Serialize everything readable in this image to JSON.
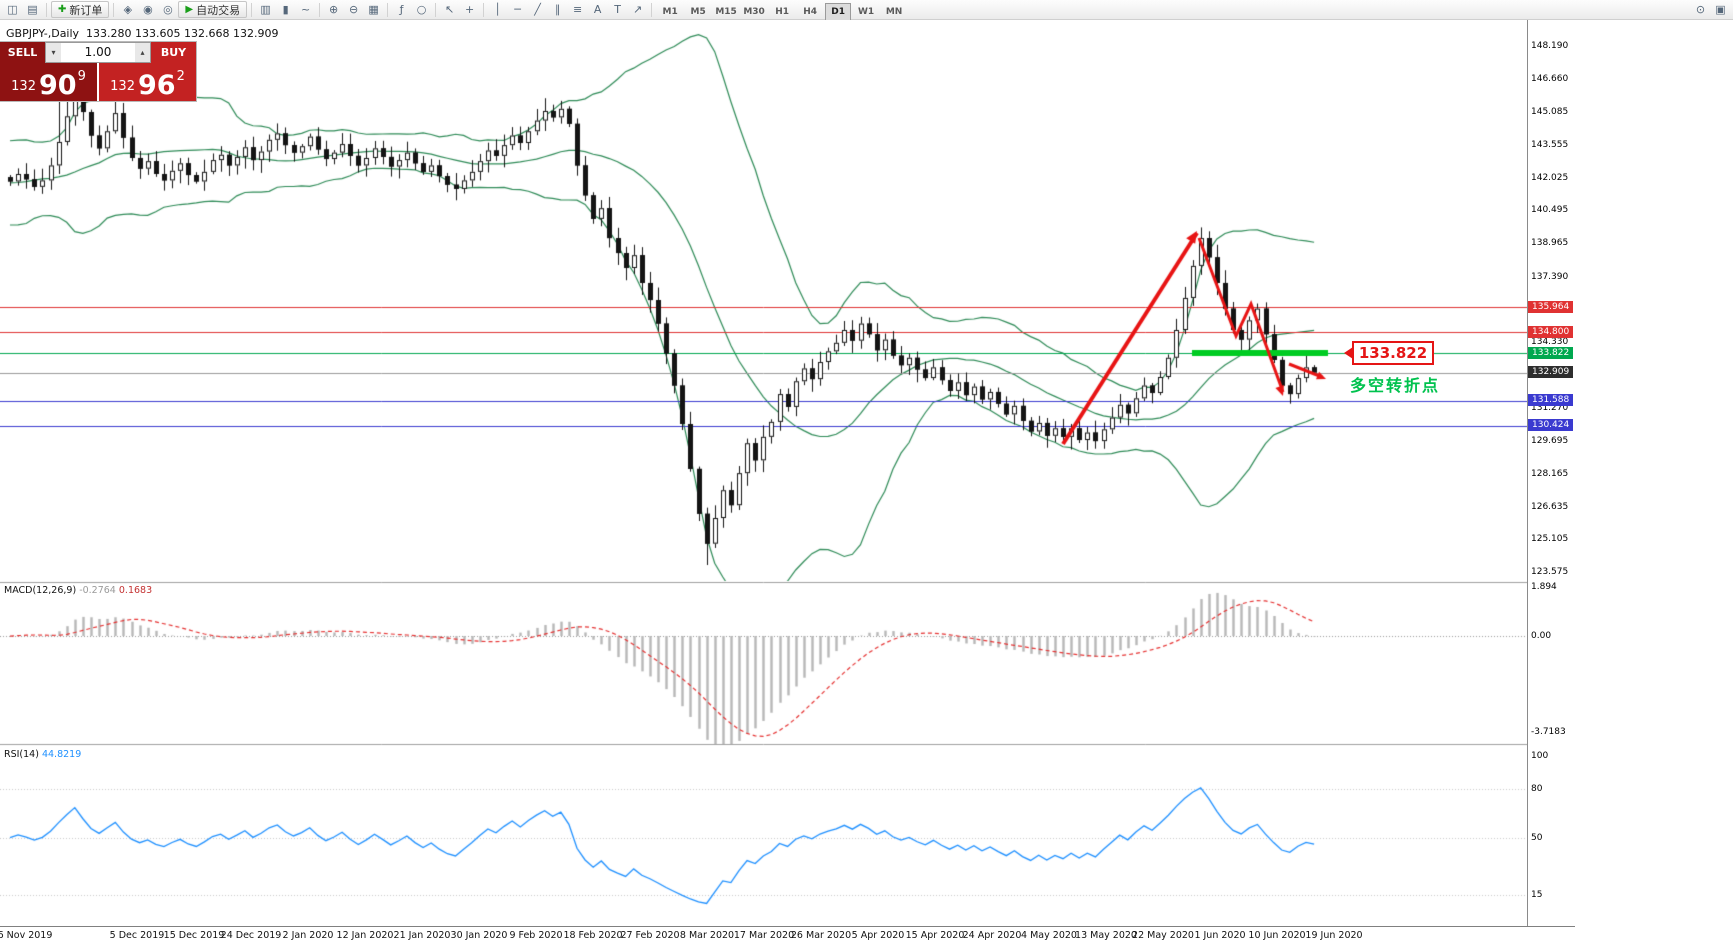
{
  "toolbar": {
    "new_order_label": "新订单",
    "autotrade_label": "自动交易",
    "timeframes": [
      "M1",
      "M5",
      "M15",
      "M30",
      "H1",
      "H4",
      "D1",
      "W1",
      "MN"
    ],
    "active_timeframe": "D1"
  },
  "icons": {
    "new_chart": "◫",
    "profiles": "▤",
    "new_order_plus": "✚",
    "expert_advisors": "◈",
    "scripts": "◉",
    "alerts": "◎",
    "autotrade_play": "▶",
    "bar_chart": "▥",
    "candle_chart": "▮",
    "line_chart": "~",
    "zoom_in": "⊕",
    "zoom_out": "⊖",
    "tile_windows": "▦",
    "indicators": "ƒ",
    "periods": "○",
    "cursor": "↖",
    "crosshair": "+",
    "vline": "│",
    "hline": "─",
    "trendline": "╱",
    "channel": "∥",
    "fibonacci": "≡",
    "text": "A",
    "text_label": "T",
    "arrow_tool": "↗",
    "chart_search": "⊙",
    "window_list": "▣",
    "spin_down": "▾",
    "spin_up": "▴"
  },
  "trade_panel": {
    "sell_label": "SELL",
    "buy_label": "BUY",
    "volume": "1.00",
    "sell_price_main": "132",
    "sell_price_big": "90",
    "sell_price_sup": "9",
    "buy_price_main": "132",
    "buy_price_big": "96",
    "buy_price_sup": "2"
  },
  "chart": {
    "header": "GBPJPY-,Daily  133.280 133.605 132.668 132.909",
    "current_price": "132.909",
    "annotation_box": "133.822",
    "annotation_text": "多空转折点",
    "price_ticks": [
      "148.190",
      "146.660",
      "145.085",
      "143.555",
      "142.025",
      "140.495",
      "138.965",
      "137.390",
      "134.330",
      "131.270",
      "129.695",
      "128.165",
      "126.635",
      "125.105",
      "123.575"
    ]
  },
  "macd": {
    "name": "MACD(12,26,9)",
    "v1": "-0.2764",
    "v2": "0.1683",
    "ticks": [
      "1.894",
      "0.00",
      "-3.7183"
    ]
  },
  "rsi": {
    "name": "RSI(14)",
    "value": "44.8219",
    "ticks": [
      "100",
      "80",
      "50",
      "15"
    ]
  },
  "chart_data": {
    "type": "candlestick",
    "symbol": "GBPJPY-",
    "period": "Daily",
    "ohlc_display": {
      "open": "133.280",
      "high": "133.605",
      "low": "132.668",
      "close": "132.909"
    },
    "y_range": [
      123.575,
      148.19
    ],
    "macd_range": [
      -3.7183,
      1.894
    ],
    "rsi_levels": [
      80,
      50,
      15
    ],
    "last_price": 132.909,
    "dates": [
      "6 Nov 2019",
      "5 Dec 2019",
      "15 Dec 2019",
      "24 Dec 2019",
      "2 Jan 2020",
      "12 Jan 2020",
      "21 Jan 2020",
      "30 Jan 2020",
      "9 Feb 2020",
      "18 Feb 2020",
      "27 Feb 2020",
      "8 Mar 2020",
      "17 Mar 2020",
      "26 Mar 2020",
      "5 Apr 2020",
      "15 Apr 2020",
      "24 Apr 2020",
      "4 May 2020",
      "13 May 2020",
      "22 May 2020",
      "1 Jun 2020",
      "10 Jun 2020",
      "19 Jun 2020"
    ],
    "closes": [
      141.85,
      142.2,
      141.95,
      141.6,
      141.9,
      142.6,
      143.7,
      144.9,
      146.2,
      145.1,
      144.0,
      143.4,
      144.2,
      145.05,
      143.9,
      142.95,
      142.45,
      142.8,
      142.2,
      141.9,
      142.35,
      142.7,
      142.15,
      141.85,
      142.3,
      142.85,
      143.1,
      142.6,
      143.0,
      143.45,
      142.85,
      143.25,
      143.8,
      144.1,
      143.55,
      143.2,
      143.5,
      143.95,
      143.35,
      142.9,
      143.2,
      143.6,
      143.05,
      142.6,
      142.95,
      143.4,
      143.0,
      142.55,
      142.85,
      143.2,
      142.7,
      142.3,
      142.6,
      142.1,
      141.7,
      141.5,
      141.9,
      142.3,
      142.8,
      143.3,
      143.05,
      143.55,
      144.0,
      143.65,
      144.2,
      144.7,
      145.15,
      144.85,
      145.25,
      144.55,
      142.6,
      141.2,
      140.1,
      140.6,
      139.2,
      138.5,
      137.8,
      138.4,
      137.1,
      136.3,
      135.2,
      133.8,
      132.3,
      130.5,
      128.4,
      126.3,
      124.9,
      126.1,
      127.4,
      126.7,
      128.2,
      129.6,
      128.8,
      129.9,
      130.6,
      131.9,
      131.3,
      132.5,
      133.1,
      132.6,
      133.4,
      133.9,
      134.3,
      134.9,
      134.4,
      135.2,
      134.7,
      133.95,
      134.45,
      133.7,
      133.25,
      133.6,
      133.05,
      132.65,
      133.15,
      132.55,
      132.05,
      132.45,
      131.85,
      132.25,
      131.65,
      132.0,
      131.45,
      130.95,
      131.35,
      130.65,
      130.15,
      130.55,
      129.95,
      130.3,
      129.9,
      130.3,
      129.75,
      130.1,
      129.7,
      130.25,
      130.8,
      131.4,
      131.0,
      131.7,
      132.3,
      131.95,
      132.7,
      133.6,
      134.9,
      136.4,
      137.9,
      139.2,
      138.3,
      137.1,
      135.9,
      134.9,
      134.45,
      135.35,
      135.9,
      134.7,
      133.5,
      132.3,
      131.9,
      132.65,
      133.15,
      132.91
    ],
    "wick_overrides": {
      "6": {
        "high": 147.0
      },
      "7": {
        "high": 147.6
      },
      "8": {
        "high": 147.9
      },
      "9": {
        "high": 147.2
      },
      "13": {
        "high": 145.7
      },
      "86": {
        "low": 123.9
      },
      "147": {
        "high": 139.7
      },
      "158": {
        "low": 131.45
      }
    },
    "horizontal_lines": [
      {
        "label": "135.964",
        "price": 135.964,
        "color": "#e03232"
      },
      {
        "label": "134.800",
        "price": 134.8,
        "color": "#e03232"
      },
      {
        "label": "133.822",
        "price": 133.822,
        "color": "#00a84f",
        "highlight": true
      },
      {
        "label": "131.588",
        "price": 131.588,
        "color": "#3a3ad0"
      },
      {
        "label": "130.424",
        "price": 130.424,
        "color": "#3a3ad0"
      }
    ],
    "indicators": {
      "bollinger": {
        "period": 20,
        "deviation": 2
      },
      "macd": {
        "fast": 12,
        "slow": 26,
        "signal": 9
      },
      "rsi": {
        "period": 14
      }
    }
  }
}
